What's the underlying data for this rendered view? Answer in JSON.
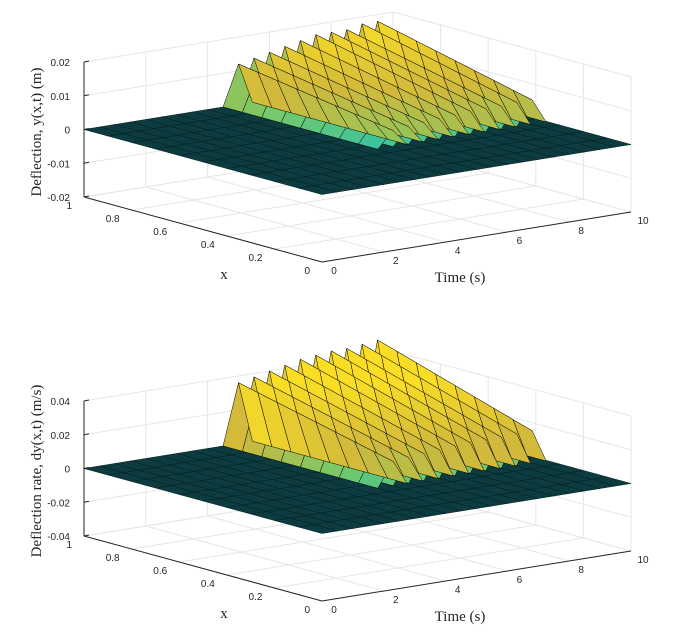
{
  "chart_data": [
    {
      "type": "surface",
      "title": "",
      "xlabel": "Time (s)",
      "ylabel": "x",
      "zlabel": "Deflection, y(x,t)  (m)",
      "xlim": [
        0,
        10
      ],
      "ylim": [
        0,
        1
      ],
      "zlim": [
        -0.02,
        0.02
      ],
      "x_ticks": [
        "0",
        "2",
        "4",
        "6",
        "8",
        "10"
      ],
      "y_ticks": [
        "0",
        "0.2",
        "0.4",
        "0.6",
        "0.8",
        "1"
      ],
      "z_ticks": [
        "-0.02",
        "-0.01",
        "0",
        "0.01",
        "0.02"
      ],
      "ridge_time": [
        5.0,
        5.5,
        6.0,
        6.5,
        7.0,
        7.5,
        8.0,
        8.5,
        9.0,
        9.5
      ],
      "ridge_peak": [
        0.012,
        0.013,
        0.014,
        0.015,
        0.016,
        0.017,
        0.017,
        0.017,
        0.018,
        0.018
      ],
      "ridge_x_extent": [
        0.35,
        1.0
      ],
      "flat_value": 0
    },
    {
      "type": "surface",
      "title": "",
      "xlabel": "Time (s)",
      "ylabel": "x",
      "zlabel": "Deflection rate, dy(x,t)  (m/s)",
      "xlim": [
        0,
        10
      ],
      "ylim": [
        0,
        1
      ],
      "zlim": [
        -0.04,
        0.04
      ],
      "x_ticks": [
        "0",
        "2",
        "4",
        "6",
        "8",
        "10"
      ],
      "y_ticks": [
        "0",
        "0.2",
        "0.4",
        "0.6",
        "0.8",
        "1"
      ],
      "z_ticks": [
        "-0.04",
        "-0.02",
        "0",
        "0.02",
        "0.04"
      ],
      "ridge_time": [
        5.0,
        5.5,
        6.0,
        6.5,
        7.0,
        7.5,
        8.0,
        8.5,
        9.0,
        9.5
      ],
      "ridge_peak": [
        0.036,
        0.038,
        0.04,
        0.042,
        0.044,
        0.045,
        0.046,
        0.046,
        0.047,
        0.048
      ],
      "ridge_x_extent": [
        0.35,
        1.0
      ],
      "flat_value": 0
    }
  ],
  "colors": {
    "colormap": [
      "#3e26a8",
      "#1f8fdc",
      "#1fbfb9",
      "#71c96b",
      "#d2b93b",
      "#fade26"
    ],
    "flat": "#0c3b40",
    "edge": "#000000"
  }
}
